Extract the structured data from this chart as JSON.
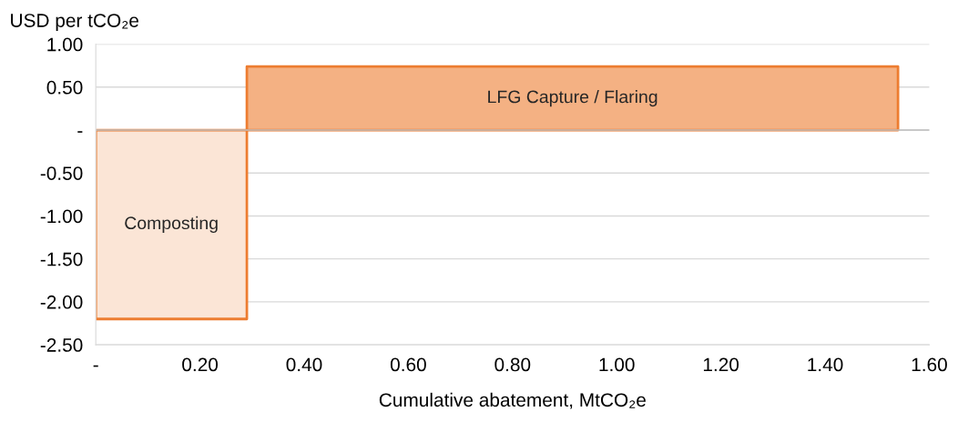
{
  "chart_data": {
    "type": "area",
    "ylabel": "USD per tCO₂e",
    "xlabel": "Cumulative abatement, MtCO₂e",
    "series": [
      {
        "name": "Composting",
        "color": "#fbe5d6",
        "x": [
          0,
          0.29
        ],
        "values": [
          -2.2,
          -2.2
        ]
      },
      {
        "name": "LFG Capture / Flaring",
        "color": "#f4b183",
        "x": [
          0.29,
          1.54
        ],
        "values": [
          0.74,
          0.74
        ]
      }
    ],
    "xlim": [
      0,
      1.6
    ],
    "xticks": [
      {
        "value": 0,
        "label": "-"
      },
      {
        "value": 0.2,
        "label": "0.20"
      },
      {
        "value": 0.4,
        "label": "0.40"
      },
      {
        "value": 0.6,
        "label": "0.60"
      },
      {
        "value": 0.8,
        "label": "0.80"
      },
      {
        "value": 1.0,
        "label": "1.00"
      },
      {
        "value": 1.2,
        "label": "1.20"
      },
      {
        "value": 1.4,
        "label": "1.40"
      },
      {
        "value": 1.6,
        "label": "1.60"
      }
    ],
    "ylim": [
      -2.5,
      1.0
    ],
    "yticks": [
      {
        "value": 1.0,
        "label": "1.00"
      },
      {
        "value": 0.5,
        "label": "0.50"
      },
      {
        "value": 0,
        "label": "-"
      },
      {
        "value": -0.5,
        "label": "-0.50"
      },
      {
        "value": -1.0,
        "label": "-1.00"
      },
      {
        "value": -1.5,
        "label": "-1.50"
      },
      {
        "value": -2.0,
        "label": "-2.00"
      },
      {
        "value": -2.5,
        "label": "-2.50"
      }
    ],
    "grid": "y"
  }
}
